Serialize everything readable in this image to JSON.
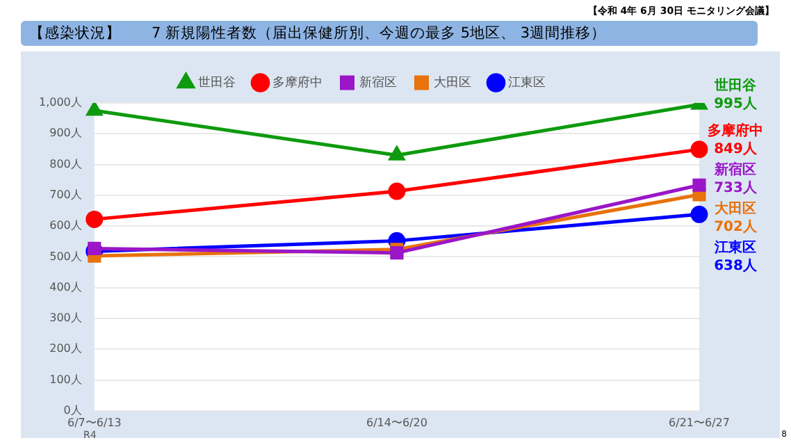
{
  "chart_data": {
    "type": "line",
    "title": "【感染状況】　　7 新規陽性者数（届出保健所別、今週の最多 5地区、 3週間推移）",
    "subtitle": "【令和 4年 6月 30日 モニタリング会議】",
    "categories": [
      "6/7〜6/13",
      "6/14〜6/20",
      "6/21〜6/27"
    ],
    "series": [
      {
        "name": "世田谷",
        "color": "#0e9a0e",
        "marker": "triangle",
        "values": [
          975,
          830,
          995
        ],
        "value_labels": [
          null,
          null,
          "995人"
        ]
      },
      {
        "name": "多摩府中",
        "color": "#ff0000",
        "marker": "circle",
        "values": [
          622,
          713,
          849
        ],
        "value_labels": [
          null,
          null,
          "849人"
        ]
      },
      {
        "name": "新宿区",
        "color": "#9a16c8",
        "marker": "square",
        "values": [
          527,
          513,
          733
        ],
        "value_labels": [
          null,
          null,
          "733人"
        ]
      },
      {
        "name": "大田区",
        "color": "#e8720c",
        "marker": "square",
        "values": [
          503,
          524,
          702
        ],
        "value_labels": [
          null,
          null,
          "702人"
        ]
      },
      {
        "name": "江東区",
        "color": "#0000ff",
        "marker": "circle",
        "values": [
          518,
          552,
          638
        ],
        "value_labels": [
          null,
          null,
          "638人"
        ]
      }
    ],
    "ylim": [
      0,
      1000
    ],
    "yticks": [
      {
        "value": 0,
        "label": "0人"
      },
      {
        "value": 100,
        "label": "100人"
      },
      {
        "value": 200,
        "label": "200人"
      },
      {
        "value": 300,
        "label": "300人"
      },
      {
        "value": 400,
        "label": "400人"
      },
      {
        "value": 500,
        "label": "500人"
      },
      {
        "value": 600,
        "label": "600人"
      },
      {
        "value": 700,
        "label": "700人"
      },
      {
        "value": 800,
        "label": "800人"
      },
      {
        "value": 900,
        "label": "900人"
      },
      {
        "value": 1000,
        "label": "1,000人"
      }
    ],
    "grid": "y",
    "legend": "top",
    "line_style": "solid",
    "annotations": [
      "R4",
      "8"
    ]
  }
}
